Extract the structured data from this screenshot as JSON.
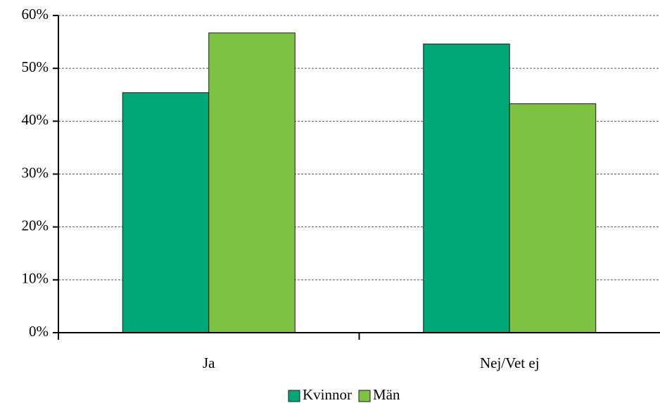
{
  "chart_data": {
    "type": "bar",
    "categories": [
      "Ja",
      "Nej/Vet ej"
    ],
    "series": [
      {
        "name": "Kvinnor",
        "color": "#00a878",
        "values": [
          45.4,
          54.6
        ]
      },
      {
        "name": "Män",
        "color": "#7dc242",
        "values": [
          56.7,
          43.3
        ]
      }
    ],
    "ylim": [
      0,
      60
    ],
    "yticks": [
      {
        "value": 0,
        "label": "0%"
      },
      {
        "value": 10,
        "label": "10%"
      },
      {
        "value": 20,
        "label": "20%"
      },
      {
        "value": 30,
        "label": "30%"
      },
      {
        "value": 40,
        "label": "40%"
      },
      {
        "value": 50,
        "label": "50%"
      },
      {
        "value": 60,
        "label": "60%"
      }
    ],
    "grid": true,
    "legend": "bottom"
  }
}
